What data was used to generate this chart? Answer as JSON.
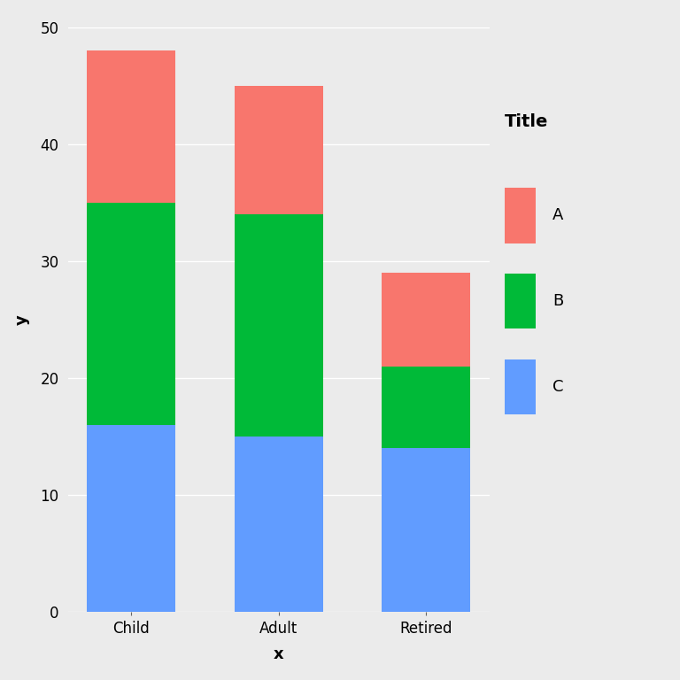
{
  "categories": [
    "Child",
    "Adult",
    "Retired"
  ],
  "series": {
    "C": [
      16,
      15,
      14
    ],
    "B": [
      19,
      19,
      7
    ],
    "A": [
      13,
      11,
      8
    ]
  },
  "colors": {
    "A": "#F8766D",
    "B": "#00BA38",
    "C": "#619CFF"
  },
  "title": "Title",
  "xlabel": "x",
  "ylabel": "y",
  "ylim": [
    0,
    50
  ],
  "yticks": [
    0,
    10,
    20,
    30,
    40,
    50
  ],
  "background_color": "#EBEBEB",
  "grid_color": "#FFFFFF",
  "bar_width": 0.6,
  "legend_order": [
    "A",
    "B",
    "C"
  ]
}
